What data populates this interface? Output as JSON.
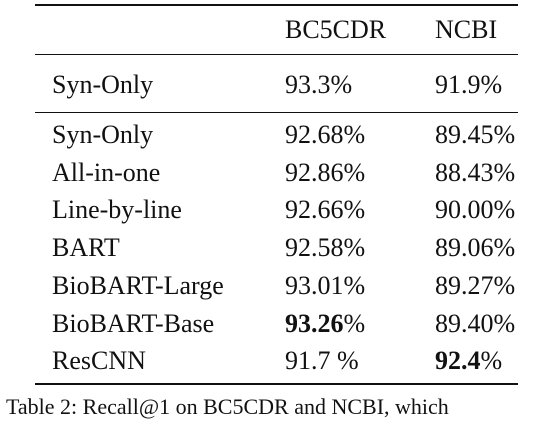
{
  "table": {
    "header": [
      "BC5CDR",
      "NCBI"
    ],
    "top_rows": [
      [
        "Syn-Only",
        "93.3%",
        "91.9%"
      ]
    ],
    "rows": [
      [
        "Syn-Only",
        "92.68%",
        "89.45%"
      ],
      [
        "All-in-one",
        "92.86%",
        "88.43%"
      ],
      [
        "Line-by-line",
        "92.66%",
        "90.00%"
      ],
      [
        "BART",
        "92.58%",
        "89.06%"
      ],
      [
        "BioBART-Large",
        "93.01%",
        "89.27%"
      ],
      [
        "BioBART-Base",
        {
          "bold": "93.26",
          "rest": "%"
        },
        "89.40%"
      ],
      [
        "ResCNN",
        "91.7 %",
        {
          "bold": "92.4",
          "rest": "%"
        }
      ]
    ]
  },
  "caption": "Table 2: Recall@1 on BC5CDR and NCBI, which"
}
